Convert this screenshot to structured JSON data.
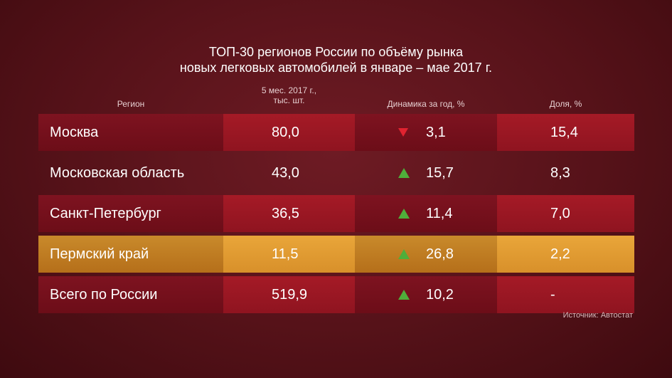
{
  "title": {
    "line1": "ТОП-30 регионов России по объёму рынка",
    "line2": "новых легковых автомобилей в январе – мае 2017 г."
  },
  "headers": {
    "region": "Регион",
    "volume_line1": "5 мес. 2017 г.,",
    "volume_line2": "тыс. шт.",
    "dynamics": "Динамика за год, %",
    "share": "Доля, %"
  },
  "source": "Источник: Автостат",
  "colors": {
    "row_red": "#7e1320",
    "row_red_highlight": "#a51a26",
    "row_orange": "#c98a2b",
    "row_orange_highlight": "#e9a63a",
    "arrow_up": "#4fae3a",
    "arrow_down": "#e02330"
  },
  "chart_data": {
    "type": "table",
    "columns": [
      "Регион",
      "5 мес. 2017 г., тыс. шт.",
      "Динамика за год, %",
      "Доля, %"
    ],
    "rows": [
      {
        "region": "Москва",
        "volume": "80,0",
        "dynamics": "3,1",
        "direction": "down",
        "share": "15,4",
        "style": "red",
        "banded": true
      },
      {
        "region": "Московская область",
        "volume": "43,0",
        "dynamics": "15,7",
        "direction": "up",
        "share": "8,3",
        "style": "plain",
        "banded": false
      },
      {
        "region": "Санкт-Петербург",
        "volume": "36,5",
        "dynamics": "11,4",
        "direction": "up",
        "share": "7,0",
        "style": "red",
        "banded": true
      },
      {
        "region": "Пермский край",
        "volume": "11,5",
        "dynamics": "26,8",
        "direction": "up",
        "share": "2,2",
        "style": "orange",
        "banded": true
      },
      {
        "region": "Всего по России",
        "volume": "519,9",
        "dynamics": "10,2",
        "direction": "up",
        "share": "-",
        "style": "red",
        "banded": true
      }
    ]
  }
}
